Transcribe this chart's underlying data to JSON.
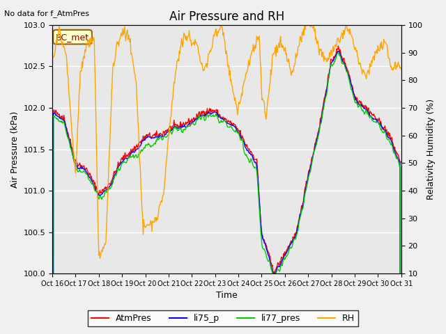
{
  "title": "Air Pressure and RH",
  "top_left_text": "No data for f_AtmPres",
  "watermark": "BC_met",
  "xlabel": "Time",
  "ylabel_left": "Air Pressure (kPa)",
  "ylabel_right": "Relativity Humidity (%)",
  "xlim": [
    0,
    15
  ],
  "ylim_left": [
    100.0,
    103.0
  ],
  "ylim_right": [
    10,
    100
  ],
  "xtick_labels": [
    "Oct 16",
    "Oct 17",
    "Oct 18",
    "Oct 19",
    "Oct 20",
    "Oct 21",
    "Oct 22",
    "Oct 23",
    "Oct 24",
    "Oct 25",
    "Oct 26",
    "Oct 27",
    "Oct 28",
    "Oct 29",
    "Oct 30",
    "Oct 31"
  ],
  "yticks_left": [
    100.0,
    100.5,
    101.0,
    101.5,
    102.0,
    102.5,
    103.0
  ],
  "yticks_right": [
    10,
    20,
    30,
    40,
    50,
    60,
    70,
    80,
    90,
    100
  ],
  "colors": {
    "AtmPres": "#ff0000",
    "li75_p": "#0000ff",
    "li77_pres": "#00cc00",
    "RH": "#ffa500",
    "background": "#e8e8e8",
    "grid": "#ffffff"
  },
  "legend": [
    "AtmPres",
    "li75_p",
    "li77_pres",
    "RH"
  ],
  "background_color": "#f0f0f0"
}
